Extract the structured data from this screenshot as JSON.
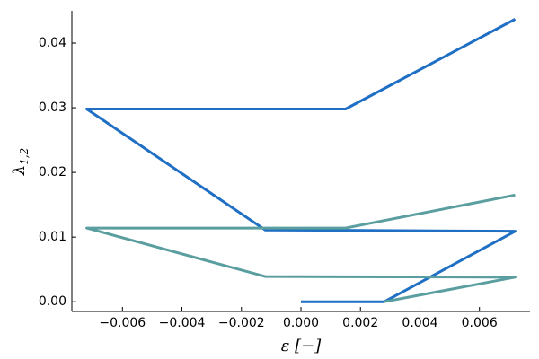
{
  "chart_data": {
    "type": "line",
    "x_label": "ε [−]",
    "y_label": "λ",
    "y_label_subscript": "1,2",
    "xlim": [
      -0.0077,
      0.0077
    ],
    "ylim": [
      -0.0015,
      0.045
    ],
    "xticks": [
      {
        "value": -0.006,
        "label": "−0.006"
      },
      {
        "value": -0.004,
        "label": "−0.004"
      },
      {
        "value": -0.002,
        "label": "−0.002"
      },
      {
        "value": 0,
        "label": "0.000"
      },
      0.002,
      0.004,
      0.006
    ],
    "yticks": [
      {
        "value": 0,
        "label": "0.00"
      },
      0.01,
      0.02,
      0.03,
      0.04
    ],
    "grid": false,
    "series": [
      {
        "color": "#1f6fc5",
        "x": [
          0.0072,
          0.0015,
          -0.0072,
          -0.0012,
          0.0072,
          0.0028,
          0.0
        ],
        "values": [
          0.0437,
          0.0298,
          0.0298,
          0.0111,
          0.0109,
          0.0,
          0.0
        ]
      },
      {
        "color": "#5b9ea0",
        "x": [
          0.0072,
          0.0015,
          -0.0072,
          -0.0012,
          0.0072,
          0.0028
        ],
        "values": [
          0.0165,
          0.0114,
          0.0114,
          0.0039,
          0.0038,
          0.0
        ]
      }
    ]
  }
}
